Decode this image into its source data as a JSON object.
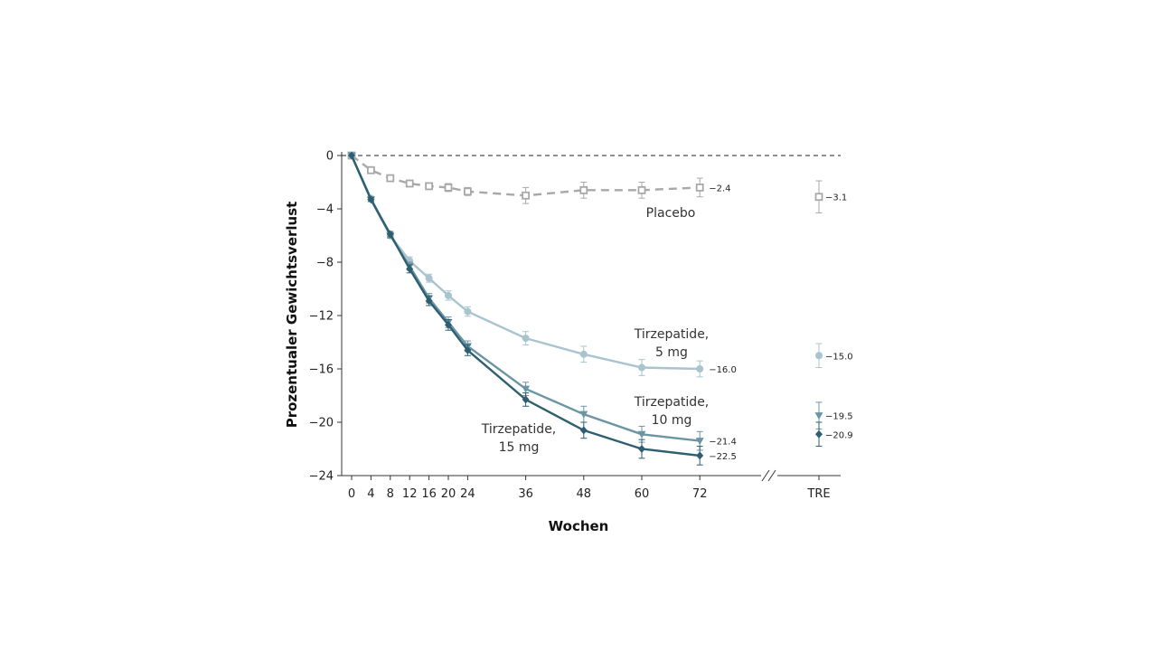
{
  "chart_data": {
    "type": "line",
    "xlabel": "Wochen",
    "ylabel": "Prozentualer Gewichtsverlust",
    "ylim": [
      -24,
      0
    ],
    "yticks": [
      0,
      -4,
      -8,
      -12,
      -16,
      -20,
      -24
    ],
    "yticklabels": [
      "0",
      "−4",
      "−8",
      "−12",
      "−16",
      "−20",
      "−24"
    ],
    "x": [
      0,
      4,
      8,
      12,
      16,
      20,
      24,
      36,
      48,
      60,
      72
    ],
    "xticklabels": [
      "0",
      "4",
      "8",
      "12",
      "16",
      "20",
      "24",
      "36",
      "48",
      "60",
      "72"
    ],
    "extra_category": "TRE",
    "reference_line": 0,
    "series": [
      {
        "name": "Placebo",
        "label_lines": [
          "Placebo"
        ],
        "color": "#a8a8a8",
        "marker": "open-square",
        "dashed": true,
        "values": [
          0,
          -1.1,
          -1.7,
          -2.1,
          -2.3,
          -2.4,
          -2.7,
          -3.0,
          -2.6,
          -2.6,
          -2.4
        ],
        "err": [
          0,
          0.1,
          0.15,
          0.2,
          0.2,
          0.3,
          0.3,
          0.6,
          0.6,
          0.6,
          0.7
        ],
        "end_label": "−2.4",
        "tre_value": -3.1,
        "tre_err": 1.2,
        "tre_label": "−3.1"
      },
      {
        "name": "Tirzepatide, 5 mg",
        "label_lines": [
          "Tirzepatide,",
          "5 mg"
        ],
        "color": "#a9c4cf",
        "marker": "circle",
        "dashed": false,
        "values": [
          0,
          -3.2,
          -6.0,
          -7.9,
          -9.2,
          -10.5,
          -11.7,
          -13.7,
          -14.9,
          -15.9,
          -16.0
        ],
        "err": [
          0,
          0.15,
          0.2,
          0.3,
          0.3,
          0.35,
          0.35,
          0.5,
          0.6,
          0.6,
          0.6
        ],
        "end_label": "−16.0",
        "tre_value": -15.0,
        "tre_err": 0.9,
        "tre_label": "−15.0"
      },
      {
        "name": "Tirzepatide, 10 mg",
        "label_lines": [
          "Tirzepatide,",
          "10 mg"
        ],
        "color": "#6c95a4",
        "marker": "triangle-down",
        "dashed": false,
        "values": [
          0,
          -3.3,
          -6.0,
          -8.3,
          -10.7,
          -12.5,
          -14.3,
          -17.5,
          -19.4,
          -20.9,
          -21.4
        ],
        "err": [
          0,
          0.15,
          0.2,
          0.3,
          0.35,
          0.4,
          0.4,
          0.5,
          0.6,
          0.6,
          0.7
        ],
        "end_label": "−21.4",
        "tre_value": -19.5,
        "tre_err": 1.0,
        "tre_label": "−19.5"
      },
      {
        "name": "Tirzepatide, 15 mg",
        "label_lines": [
          "Tirzepatide,",
          "15 mg"
        ],
        "color": "#2e5f70",
        "marker": "diamond",
        "dashed": false,
        "values": [
          0,
          -3.3,
          -5.9,
          -8.5,
          -10.9,
          -12.7,
          -14.6,
          -18.3,
          -20.6,
          -22.0,
          -22.5
        ],
        "err": [
          0,
          0.15,
          0.2,
          0.3,
          0.35,
          0.4,
          0.4,
          0.5,
          0.6,
          0.7,
          0.7
        ],
        "end_label": "−22.5",
        "tre_value": -20.9,
        "tre_err": 0.9,
        "tre_label": "−20.9"
      }
    ]
  }
}
